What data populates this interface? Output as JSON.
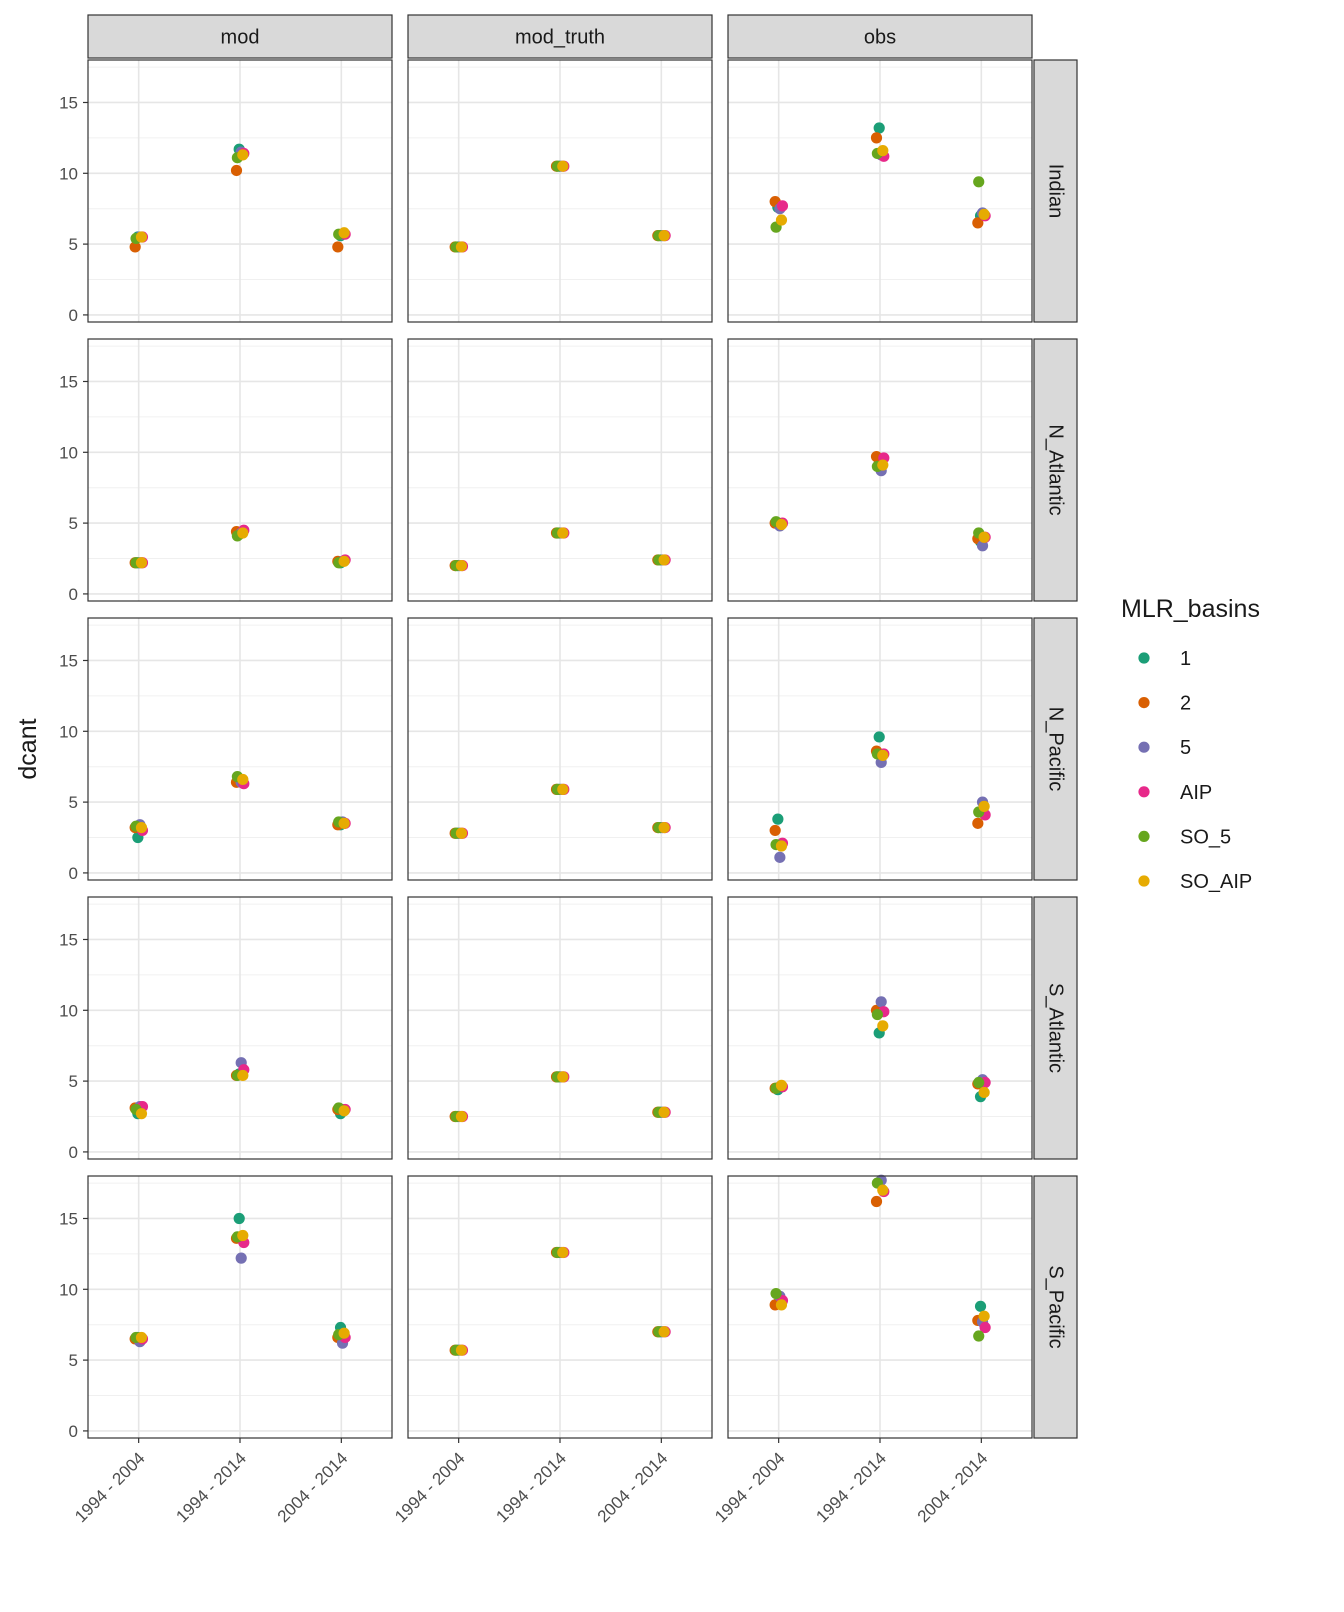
{
  "chart_data": {
    "type": "scatter",
    "ylabel": "dcant",
    "facet_cols": [
      "mod",
      "mod_truth",
      "obs"
    ],
    "facet_rows": [
      "Indian",
      "N_Atlantic",
      "N_Pacific",
      "S_Atlantic",
      "S_Pacific"
    ],
    "categories": [
      "1994 - 2004",
      "1994 - 2014",
      "2004 - 2014"
    ],
    "ylim": [
      -0.5,
      18
    ],
    "yticks": [
      0,
      5,
      10,
      15
    ],
    "grid": true,
    "legend": {
      "title": "MLR_basins",
      "position": "right",
      "entries": [
        {
          "label": "1",
          "color": "#1B9E77"
        },
        {
          "label": "2",
          "color": "#D95F02"
        },
        {
          "label": "5",
          "color": "#7570B3"
        },
        {
          "label": "AIP",
          "color": "#E7298A"
        },
        {
          "label": "SO_5",
          "color": "#66A61E"
        },
        {
          "label": "SO_AIP",
          "color": "#E6AB02"
        }
      ]
    },
    "series_order": [
      "1",
      "2",
      "5",
      "AIP",
      "SO_5",
      "SO_AIP"
    ],
    "values": {
      "Indian": {
        "mod": [
          [
            5.5,
            4.8,
            5.5,
            5.5,
            5.4,
            5.5
          ],
          [
            11.7,
            10.2,
            11.5,
            11.4,
            11.1,
            11.3
          ],
          [
            5.6,
            4.8,
            5.7,
            5.7,
            5.7,
            5.8
          ]
        ],
        "mod_truth": [
          [
            4.8,
            4.8,
            4.8,
            4.8,
            4.8,
            4.8
          ],
          [
            10.5,
            10.5,
            10.5,
            10.5,
            10.5,
            10.5
          ],
          [
            5.6,
            5.6,
            5.6,
            5.6,
            5.6,
            5.6
          ]
        ],
        "obs": [
          [
            7.6,
            8.0,
            7.5,
            7.7,
            6.2,
            6.7
          ],
          [
            13.2,
            12.5,
            11.3,
            11.2,
            11.4,
            11.6
          ],
          [
            7.0,
            6.5,
            7.2,
            7.0,
            9.4,
            7.1
          ]
        ]
      },
      "N_Atlantic": {
        "mod": [
          [
            2.2,
            2.2,
            2.2,
            2.2,
            2.2,
            2.2
          ],
          [
            4.2,
            4.4,
            4.3,
            4.5,
            4.1,
            4.3
          ],
          [
            2.2,
            2.3,
            2.3,
            2.4,
            2.2,
            2.3
          ]
        ],
        "mod_truth": [
          [
            2.0,
            2.0,
            2.0,
            2.0,
            2.0,
            2.0
          ],
          [
            4.3,
            4.3,
            4.3,
            4.3,
            4.3,
            4.3
          ],
          [
            2.4,
            2.4,
            2.4,
            2.4,
            2.4,
            2.4
          ]
        ],
        "obs": [
          [
            5.0,
            5.0,
            4.8,
            5.0,
            5.1,
            4.9
          ],
          [
            9.2,
            9.7,
            8.7,
            9.6,
            9.0,
            9.1
          ],
          [
            3.7,
            3.9,
            3.4,
            4.0,
            4.3,
            4.0
          ]
        ]
      },
      "N_Pacific": {
        "mod": [
          [
            2.5,
            3.2,
            3.4,
            3.0,
            3.3,
            3.2
          ],
          [
            6.6,
            6.4,
            6.4,
            6.3,
            6.8,
            6.6
          ],
          [
            3.4,
            3.4,
            3.6,
            3.5,
            3.6,
            3.5
          ]
        ],
        "mod_truth": [
          [
            2.8,
            2.8,
            2.8,
            2.8,
            2.8,
            2.8
          ],
          [
            5.9,
            5.9,
            5.9,
            5.9,
            5.9,
            5.9
          ],
          [
            3.2,
            3.2,
            3.2,
            3.2,
            3.2,
            3.2
          ]
        ],
        "obs": [
          [
            3.8,
            3.0,
            1.1,
            2.1,
            2.0,
            1.9
          ],
          [
            9.6,
            8.6,
            7.8,
            8.4,
            8.4,
            8.3
          ],
          [
            4.3,
            3.5,
            5.0,
            4.1,
            4.3,
            4.7
          ]
        ]
      },
      "S_Atlantic": {
        "mod": [
          [
            2.7,
            3.1,
            3.2,
            3.2,
            3.0,
            2.7
          ],
          [
            5.5,
            5.4,
            6.3,
            5.8,
            5.4,
            5.4
          ],
          [
            2.7,
            3.0,
            3.0,
            3.0,
            3.1,
            2.9
          ]
        ],
        "mod_truth": [
          [
            2.5,
            2.5,
            2.5,
            2.5,
            2.5,
            2.5
          ],
          [
            5.3,
            5.3,
            5.3,
            5.3,
            5.3,
            5.3
          ],
          [
            2.8,
            2.8,
            2.8,
            2.8,
            2.8,
            2.8
          ]
        ],
        "obs": [
          [
            4.4,
            4.5,
            4.6,
            4.6,
            4.5,
            4.7
          ],
          [
            8.4,
            10.0,
            10.6,
            9.9,
            9.7,
            8.9
          ],
          [
            3.9,
            4.8,
            5.1,
            4.9,
            4.9,
            4.2
          ]
        ]
      },
      "S_Pacific": {
        "mod": [
          [
            6.6,
            6.5,
            6.3,
            6.5,
            6.6,
            6.6
          ],
          [
            15.0,
            13.6,
            12.2,
            13.3,
            13.7,
            13.8
          ],
          [
            7.3,
            6.6,
            6.2,
            6.6,
            6.8,
            6.9
          ]
        ],
        "mod_truth": [
          [
            5.7,
            5.7,
            5.7,
            5.7,
            5.7,
            5.7
          ],
          [
            12.6,
            12.6,
            12.6,
            12.6,
            12.6,
            12.6
          ],
          [
            7.0,
            7.0,
            7.0,
            7.0,
            7.0,
            7.0
          ]
        ],
        "obs": [
          [
            9.0,
            8.9,
            9.5,
            9.2,
            9.7,
            8.9
          ],
          [
            17.5,
            16.2,
            17.7,
            16.9,
            17.5,
            17.0
          ],
          [
            8.8,
            7.8,
            7.7,
            7.3,
            6.7,
            8.1
          ]
        ]
      }
    }
  }
}
